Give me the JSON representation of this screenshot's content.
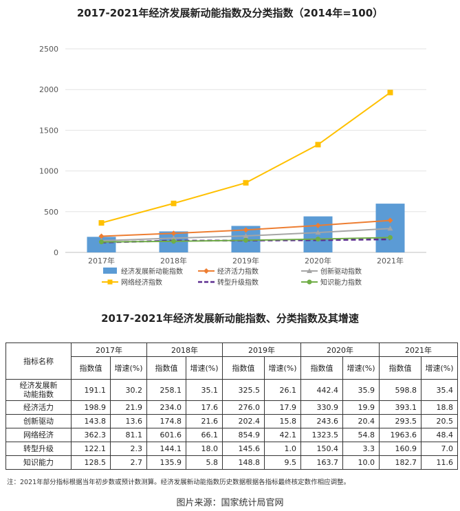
{
  "chart_data": {
    "type": "bar+line",
    "title": "2017-2021年经济发展新动能指数及分类指数（2014年=100）",
    "categories": [
      "2017年",
      "2018年",
      "2019年",
      "2020年",
      "2021年"
    ],
    "ylim": [
      0,
      2500
    ],
    "yticks": [
      0,
      500,
      1000,
      1500,
      2000,
      2500
    ],
    "bar_series": {
      "name": "经济发展新动能指数",
      "color": "#5B9BD5",
      "values": [
        191.1,
        258.1,
        325.5,
        442.4,
        598.8
      ]
    },
    "line_series": [
      {
        "name": "经济活力指数",
        "color": "#ED7D31",
        "marker": "diamond",
        "dash": false,
        "values": [
          198.9,
          234.0,
          276.0,
          330.9,
          393.1
        ]
      },
      {
        "name": "创新驱动指数",
        "color": "#A5A5A5",
        "marker": "triangle",
        "dash": false,
        "values": [
          143.8,
          174.8,
          202.4,
          243.6,
          293.5
        ]
      },
      {
        "name": "网络经济指数",
        "color": "#FFC000",
        "marker": "square",
        "dash": false,
        "values": [
          362.3,
          601.6,
          854.9,
          1323.5,
          1963.6
        ]
      },
      {
        "name": "转型升级指数",
        "color": "#5B2C8F",
        "marker": "none",
        "dash": true,
        "values": [
          122.1,
          144.1,
          145.6,
          150.4,
          160.9
        ]
      },
      {
        "name": "知识能力指数",
        "color": "#70AD47",
        "marker": "circle",
        "dash": false,
        "values": [
          128.5,
          135.9,
          148.8,
          163.7,
          182.7
        ]
      }
    ],
    "legend_position": "bottom"
  },
  "table": {
    "title": "2017-2021年经济发展新动能指数、分类指数及其增速",
    "corner_label": "指标名称",
    "years": [
      "2017年",
      "2018年",
      "2019年",
      "2020年",
      "2021年"
    ],
    "sub_index": "指数值",
    "sub_growth": "增速(%)",
    "rows": [
      {
        "name": "经济发展新动能指数",
        "name_l1": "经济发展新",
        "name_l2": "动能指数",
        "cells": [
          [
            "191.1",
            "30.2"
          ],
          [
            "258.1",
            "35.1"
          ],
          [
            "325.5",
            "26.1"
          ],
          [
            "442.4",
            "35.9"
          ],
          [
            "598.8",
            "35.4"
          ]
        ]
      },
      {
        "name": "经济活力",
        "cells": [
          [
            "198.9",
            "21.9"
          ],
          [
            "234.0",
            "17.6"
          ],
          [
            "276.0",
            "17.9"
          ],
          [
            "330.9",
            "19.9"
          ],
          [
            "393.1",
            "18.8"
          ]
        ]
      },
      {
        "name": "创新驱动",
        "cells": [
          [
            "143.8",
            "13.6"
          ],
          [
            "174.8",
            "21.6"
          ],
          [
            "202.4",
            "15.8"
          ],
          [
            "243.6",
            "20.4"
          ],
          [
            "293.5",
            "20.5"
          ]
        ]
      },
      {
        "name": "网络经济",
        "cells": [
          [
            "362.3",
            "81.1"
          ],
          [
            "601.6",
            "66.1"
          ],
          [
            "854.9",
            "42.1"
          ],
          [
            "1323.5",
            "54.8"
          ],
          [
            "1963.6",
            "48.4"
          ]
        ]
      },
      {
        "name": "转型升级",
        "cells": [
          [
            "122.1",
            "2.3"
          ],
          [
            "144.1",
            "18.0"
          ],
          [
            "145.6",
            "1.0"
          ],
          [
            "150.4",
            "3.3"
          ],
          [
            "160.9",
            "7.0"
          ]
        ]
      },
      {
        "name": "知识能力",
        "cells": [
          [
            "128.5",
            "2.7"
          ],
          [
            "135.9",
            "5.8"
          ],
          [
            "148.8",
            "9.5"
          ],
          [
            "163.7",
            "10.0"
          ],
          [
            "182.7",
            "11.6"
          ]
        ]
      }
    ]
  },
  "note": "注：2021年部分指标根据当年初步数或预计数测算。经济发展新动能指数历史数据根据各指标最终核定数作相应调整。",
  "source": "图片来源：国家统计局官网"
}
